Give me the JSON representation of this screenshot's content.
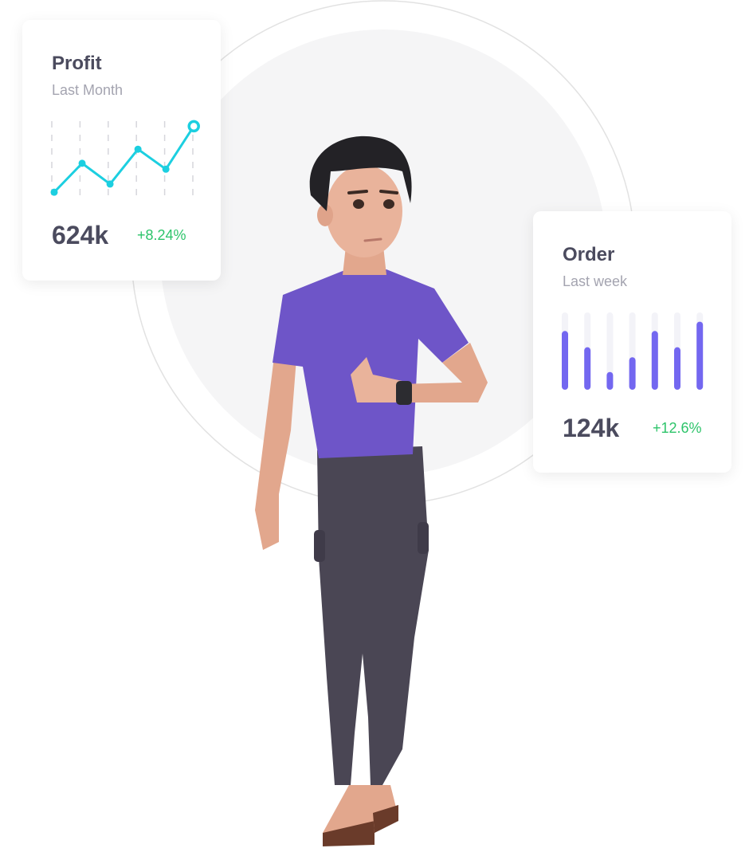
{
  "profit_card": {
    "title": "Profit",
    "subtitle": "Last Month",
    "value": "624k",
    "change": "+8.24%",
    "line_values": [
      2,
      41,
      13,
      60,
      33,
      91
    ],
    "line_color": "#1ccfe0"
  },
  "order_card": {
    "title": "Order",
    "subtitle": "Last week",
    "value": "124k",
    "change": "+12.6%",
    "bar_fractions": [
      0.76,
      0.55,
      0.23,
      0.42,
      0.76,
      0.55,
      0.88
    ],
    "bar_color": "#7367f0",
    "track_color": "#f3f3f8"
  },
  "colors": {
    "positive": "#2dc46a",
    "shirt": "#6e55c8",
    "pants": "#4a4654"
  }
}
